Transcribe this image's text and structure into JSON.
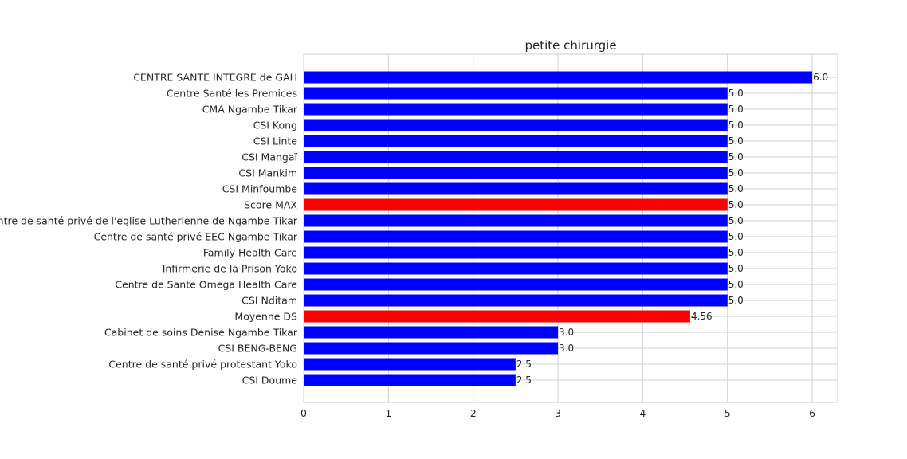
{
  "chart_data": {
    "type": "bar",
    "orientation": "horizontal",
    "title": "petite chirurgie",
    "xlabel": "",
    "ylabel": "",
    "xlim": [
      0,
      6.3
    ],
    "xticks": [
      0,
      1,
      2,
      3,
      4,
      5,
      6
    ],
    "grid": true,
    "colors": {
      "default": "#0000ff",
      "highlight": "#ff0000"
    },
    "bars": [
      {
        "label": "CENTRE SANTE INTEGRE  de GAH",
        "value": 6.0,
        "value_label": "6.0",
        "color": "#0000ff"
      },
      {
        "label": "Centre Santé les Premices",
        "value": 5.0,
        "value_label": "5.0",
        "color": "#0000ff"
      },
      {
        "label": "CMA Ngambe Tikar",
        "value": 5.0,
        "value_label": "5.0",
        "color": "#0000ff"
      },
      {
        "label": "CSI Kong",
        "value": 5.0,
        "value_label": "5.0",
        "color": "#0000ff"
      },
      {
        "label": "CSI Linte",
        "value": 5.0,
        "value_label": "5.0",
        "color": "#0000ff"
      },
      {
        "label": "CSI Mangaï",
        "value": 5.0,
        "value_label": "5.0",
        "color": "#0000ff"
      },
      {
        "label": "CSI Mankim",
        "value": 5.0,
        "value_label": "5.0",
        "color": "#0000ff"
      },
      {
        "label": "CSI Minfoumbe",
        "value": 5.0,
        "value_label": "5.0",
        "color": "#0000ff"
      },
      {
        "label": "Score MAX",
        "value": 5.0,
        "value_label": "5.0",
        "color": "#ff0000"
      },
      {
        "label": "Centre de santé privé  de l'eglise Lutherienne de Ngambe Tikar",
        "value": 5.0,
        "value_label": "5.0",
        "color": "#0000ff"
      },
      {
        "label": "Centre de santé privé EEC Ngambe Tikar",
        "value": 5.0,
        "value_label": "5.0",
        "color": "#0000ff"
      },
      {
        "label": "Family Health Care",
        "value": 5.0,
        "value_label": "5.0",
        "color": "#0000ff"
      },
      {
        "label": "Infirmerie de la Prison Yoko",
        "value": 5.0,
        "value_label": "5.0",
        "color": "#0000ff"
      },
      {
        "label": "Centre de Sante Omega Health  Care",
        "value": 5.0,
        "value_label": "5.0",
        "color": "#0000ff"
      },
      {
        "label": "CSI Nditam",
        "value": 5.0,
        "value_label": "5.0",
        "color": "#0000ff"
      },
      {
        "label": "Moyenne DS",
        "value": 4.56,
        "value_label": "4.56",
        "color": "#ff0000"
      },
      {
        "label": "Cabinet de soins Denise Ngambe Tikar",
        "value": 3.0,
        "value_label": "3.0",
        "color": "#0000ff"
      },
      {
        "label": "CSI BENG-BENG",
        "value": 3.0,
        "value_label": "3.0",
        "color": "#0000ff"
      },
      {
        "label": "Centre de santé privé protestant Yoko",
        "value": 2.5,
        "value_label": "2.5",
        "color": "#0000ff"
      },
      {
        "label": "CSI Doume",
        "value": 2.5,
        "value_label": "2.5",
        "color": "#0000ff"
      }
    ]
  }
}
